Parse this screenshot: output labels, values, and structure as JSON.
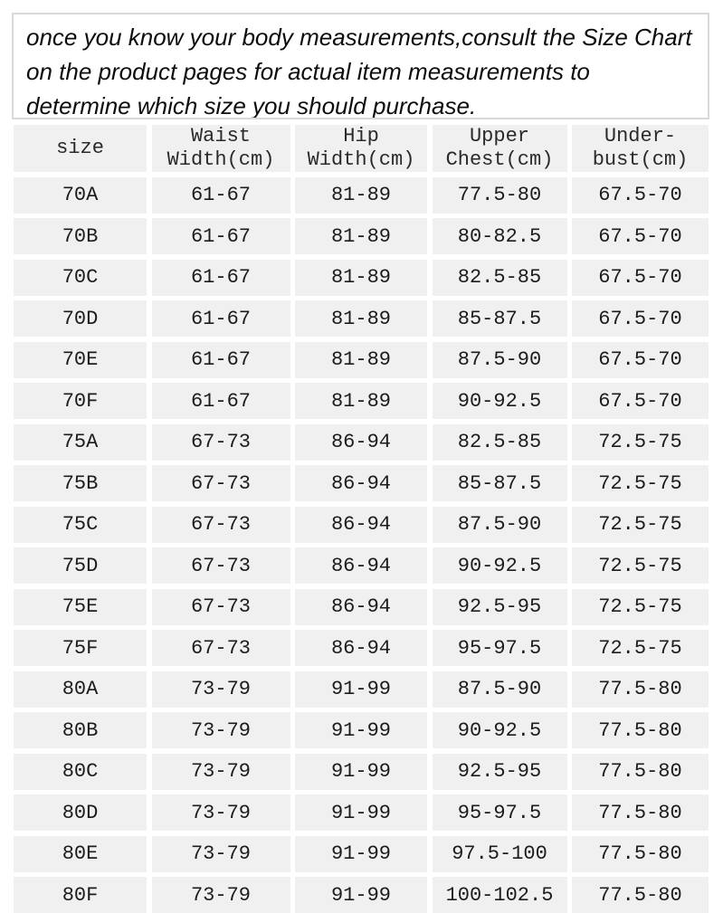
{
  "info_box": {
    "lines": [
      "once you know your body measurements,consult the Size Chart",
      "on the product pages for actual item measurements to",
      "determine which size you should purchase."
    ]
  },
  "size_chart": {
    "columns": [
      {
        "id": "size",
        "label_lines": [
          "size"
        ]
      },
      {
        "id": "waist",
        "label_lines": [
          "Waist",
          "Width(cm)"
        ]
      },
      {
        "id": "hip",
        "label_lines": [
          "Hip",
          "Width(cm)"
        ]
      },
      {
        "id": "upper-chest",
        "label_lines": [
          "Upper",
          "Chest(cm)"
        ]
      },
      {
        "id": "underbust",
        "label_lines": [
          "Under-",
          "bust(cm)"
        ]
      }
    ],
    "rows": [
      [
        "70A",
        "61-67",
        "81-89",
        "77.5-80",
        "67.5-70"
      ],
      [
        "70B",
        "61-67",
        "81-89",
        "80-82.5",
        "67.5-70"
      ],
      [
        "70C",
        "61-67",
        "81-89",
        "82.5-85",
        "67.5-70"
      ],
      [
        "70D",
        "61-67",
        "81-89",
        "85-87.5",
        "67.5-70"
      ],
      [
        "70E",
        "61-67",
        "81-89",
        "87.5-90",
        "67.5-70"
      ],
      [
        "70F",
        "61-67",
        "81-89",
        "90-92.5",
        "67.5-70"
      ],
      [
        "75A",
        "67-73",
        "86-94",
        "82.5-85",
        "72.5-75"
      ],
      [
        "75B",
        "67-73",
        "86-94",
        "85-87.5",
        "72.5-75"
      ],
      [
        "75C",
        "67-73",
        "86-94",
        "87.5-90",
        "72.5-75"
      ],
      [
        "75D",
        "67-73",
        "86-94",
        "90-92.5",
        "72.5-75"
      ],
      [
        "75E",
        "67-73",
        "86-94",
        "92.5-95",
        "72.5-75"
      ],
      [
        "75F",
        "67-73",
        "86-94",
        "95-97.5",
        "72.5-75"
      ],
      [
        "80A",
        "73-79",
        "91-99",
        "87.5-90",
        "77.5-80"
      ],
      [
        "80B",
        "73-79",
        "91-99",
        "90-92.5",
        "77.5-80"
      ],
      [
        "80C",
        "73-79",
        "91-99",
        "92.5-95",
        "77.5-80"
      ],
      [
        "80D",
        "73-79",
        "91-99",
        "95-97.5",
        "77.5-80"
      ],
      [
        "80E",
        "73-79",
        "91-99",
        "97.5-100",
        "77.5-80"
      ],
      [
        "80F",
        "73-79",
        "91-99",
        "100-102.5",
        "77.5-80"
      ]
    ]
  },
  "colors": {
    "cell_background": "#f0f0f0",
    "gutter": "#ffffff",
    "info_box_border": "#d9d9d9",
    "text": "#1c1c1c"
  }
}
